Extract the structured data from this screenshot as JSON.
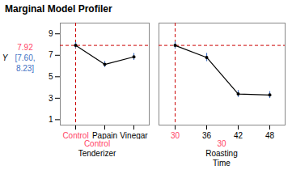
{
  "chart_data": [
    {
      "type": "line",
      "title": "Marginal Model Profiler",
      "ylabel": "Y",
      "xlabel": "Tenderizer",
      "categories": [
        "Control",
        "Papain",
        "Vinegar"
      ],
      "values": [
        7.92,
        6.15,
        6.85
      ],
      "errors": {
        "values": [
          0.28,
          0.28,
          0.32
        ],
        "color": "#4472C4"
      },
      "color": "#000000",
      "marker": "o",
      "line_style": "solid",
      "ylim": [
        0.5,
        10
      ],
      "yticks": [
        1,
        3,
        5,
        7,
        9
      ],
      "grid": false,
      "reference_lines": [
        {
          "axis": "y",
          "value": 7.92,
          "color": "#CC0000",
          "line_style": "dashed"
        },
        {
          "axis": "x",
          "value": "Control",
          "color": "#CC0000",
          "line_style": "dashed"
        }
      ],
      "highlight": {
        "category": "Control",
        "color": "#FF4466"
      },
      "annotations": [
        {
          "text": "7.92",
          "color": "#FF4466"
        },
        {
          "text": "[7.60,",
          "color": "#4472C4"
        },
        {
          "text": "8.23]",
          "color": "#4472C4"
        }
      ]
    },
    {
      "type": "line",
      "xlabel": "Roasting\nTime",
      "categories": [
        "30",
        "36",
        "42",
        "48"
      ],
      "values": [
        7.92,
        6.8,
        3.4,
        3.3
      ],
      "errors": {
        "values": [
          0.32,
          0.38,
          0.32,
          0.32
        ],
        "color": "#4472C4"
      },
      "color": "#000000",
      "marker": "o",
      "line_style": "solid",
      "ylim": [
        0.5,
        10
      ],
      "yticks": [
        1,
        3,
        5,
        7,
        9
      ],
      "grid": false,
      "tick_labels": "x",
      "reference_lines": [
        {
          "axis": "y",
          "value": 7.92,
          "color": "#CC0000",
          "line_style": "dashed"
        },
        {
          "axis": "x",
          "value": "30",
          "color": "#CC0000",
          "line_style": "dashed"
        }
      ],
      "highlight": {
        "category": "30",
        "color": "#FF4466"
      }
    }
  ]
}
